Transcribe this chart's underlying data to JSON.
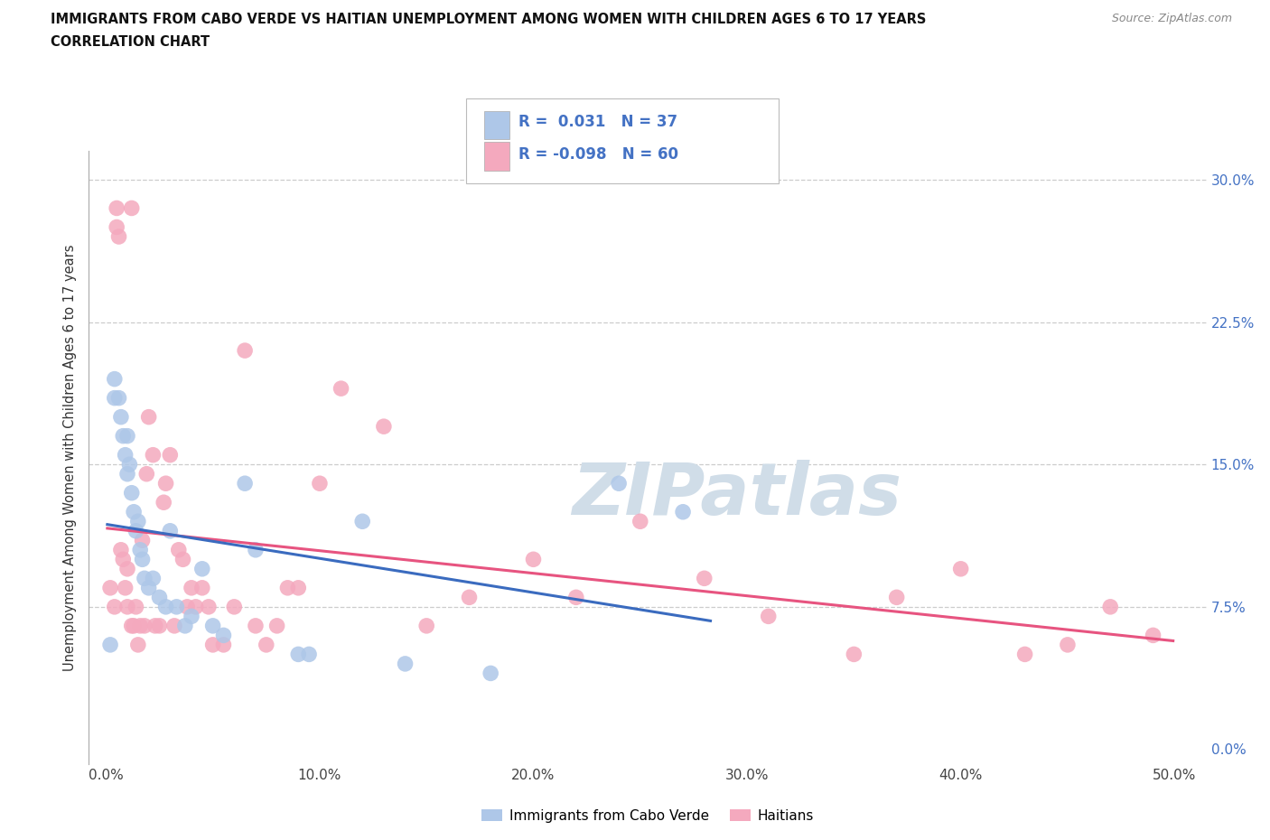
{
  "title_line1": "IMMIGRANTS FROM CABO VERDE VS HAITIAN UNEMPLOYMENT AMONG WOMEN WITH CHILDREN AGES 6 TO 17 YEARS",
  "title_line2": "CORRELATION CHART",
  "source_text": "Source: ZipAtlas.com",
  "ylabel": "Unemployment Among Women with Children Ages 6 to 17 years",
  "xlabel_ticks": [
    "0.0%",
    "10.0%",
    "20.0%",
    "30.0%",
    "40.0%",
    "50.0%"
  ],
  "xlabel_vals": [
    0.0,
    0.1,
    0.2,
    0.3,
    0.4,
    0.5
  ],
  "ylabel_ticks": [
    "0.0%",
    "7.5%",
    "15.0%",
    "22.5%",
    "30.0%"
  ],
  "ylabel_vals": [
    0.0,
    0.075,
    0.15,
    0.225,
    0.3
  ],
  "xlim": [
    -0.008,
    0.515
  ],
  "ylim": [
    -0.008,
    0.315
  ],
  "cabo_verde_R": "0.031",
  "cabo_verde_N": 37,
  "haitian_R": "-0.098",
  "haitian_N": 60,
  "cabo_verde_color": "#aec7e8",
  "haitian_color": "#f4a9be",
  "cabo_verde_line_color": "#3a6bbf",
  "haitian_line_color": "#e75480",
  "cabo_verde_line_dashed": false,
  "haitian_line_dashed": false,
  "watermark_text": "ZIPatlas",
  "legend_R_color": "#4472c4",
  "legend_N_color": "#333333",
  "cabo_verde_x": [
    0.002,
    0.004,
    0.004,
    0.006,
    0.007,
    0.008,
    0.009,
    0.01,
    0.01,
    0.011,
    0.012,
    0.013,
    0.014,
    0.015,
    0.016,
    0.017,
    0.018,
    0.02,
    0.022,
    0.025,
    0.028,
    0.03,
    0.033,
    0.037,
    0.04,
    0.045,
    0.05,
    0.055,
    0.065,
    0.07,
    0.09,
    0.095,
    0.12,
    0.14,
    0.18,
    0.24,
    0.27
  ],
  "cabo_verde_y": [
    0.055,
    0.195,
    0.185,
    0.185,
    0.175,
    0.165,
    0.155,
    0.145,
    0.165,
    0.15,
    0.135,
    0.125,
    0.115,
    0.12,
    0.105,
    0.1,
    0.09,
    0.085,
    0.09,
    0.08,
    0.075,
    0.115,
    0.075,
    0.065,
    0.07,
    0.095,
    0.065,
    0.06,
    0.14,
    0.105,
    0.05,
    0.05,
    0.12,
    0.045,
    0.04,
    0.14,
    0.125
  ],
  "haitian_x": [
    0.002,
    0.004,
    0.005,
    0.005,
    0.006,
    0.007,
    0.008,
    0.009,
    0.01,
    0.01,
    0.012,
    0.012,
    0.013,
    0.014,
    0.015,
    0.016,
    0.017,
    0.018,
    0.019,
    0.02,
    0.022,
    0.023,
    0.025,
    0.027,
    0.028,
    0.03,
    0.032,
    0.034,
    0.036,
    0.038,
    0.04,
    0.042,
    0.045,
    0.048,
    0.05,
    0.055,
    0.06,
    0.065,
    0.07,
    0.075,
    0.08,
    0.085,
    0.09,
    0.1,
    0.11,
    0.13,
    0.15,
    0.17,
    0.2,
    0.22,
    0.25,
    0.28,
    0.31,
    0.35,
    0.37,
    0.4,
    0.43,
    0.45,
    0.47,
    0.49
  ],
  "haitian_y": [
    0.085,
    0.075,
    0.275,
    0.285,
    0.27,
    0.105,
    0.1,
    0.085,
    0.075,
    0.095,
    0.065,
    0.285,
    0.065,
    0.075,
    0.055,
    0.065,
    0.11,
    0.065,
    0.145,
    0.175,
    0.155,
    0.065,
    0.065,
    0.13,
    0.14,
    0.155,
    0.065,
    0.105,
    0.1,
    0.075,
    0.085,
    0.075,
    0.085,
    0.075,
    0.055,
    0.055,
    0.075,
    0.21,
    0.065,
    0.055,
    0.065,
    0.085,
    0.085,
    0.14,
    0.19,
    0.17,
    0.065,
    0.08,
    0.1,
    0.08,
    0.12,
    0.09,
    0.07,
    0.05,
    0.08,
    0.095,
    0.05,
    0.055,
    0.075,
    0.06
  ]
}
